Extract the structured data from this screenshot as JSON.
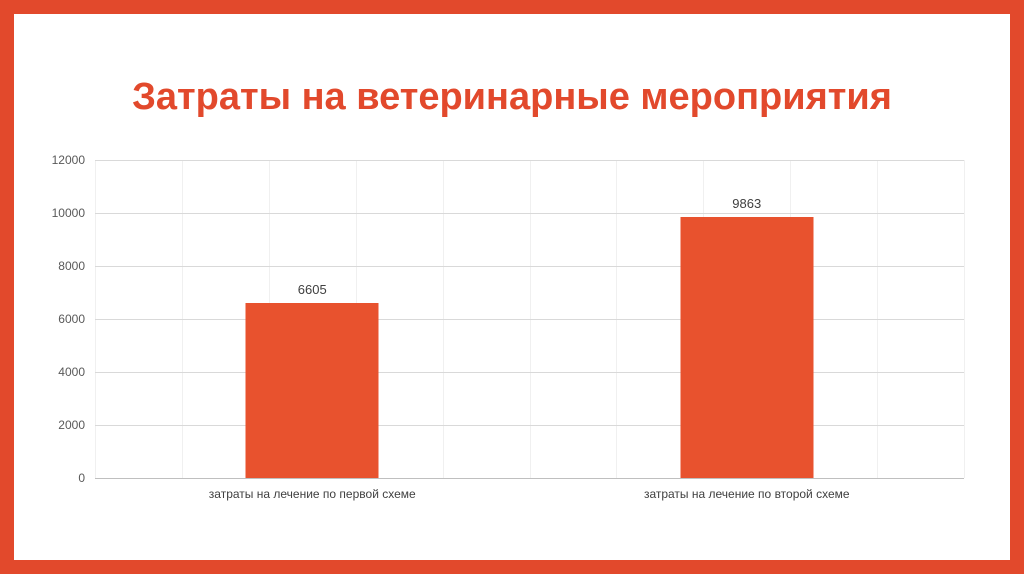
{
  "slide": {
    "title": "Затраты на ветеринарные мероприятия"
  },
  "colors": {
    "frame": "#e2492c",
    "title": "#e2492c",
    "bar": "#e8522e",
    "gridline": "#d9d9d9",
    "axis_text": "#595959"
  },
  "chart_data": {
    "type": "bar",
    "title": "Затраты на ветеринарные мероприятия",
    "categories": [
      "затраты на лечение по первой схеме",
      "затраты на лечение по второй схеме"
    ],
    "values": [
      6605,
      9863
    ],
    "xlabel": "",
    "ylabel": "",
    "ylim": [
      0,
      12000
    ],
    "yticks": [
      0,
      2000,
      4000,
      6000,
      8000,
      10000,
      12000
    ],
    "grid": true,
    "legend": false,
    "bar_color": "#e8522e"
  }
}
